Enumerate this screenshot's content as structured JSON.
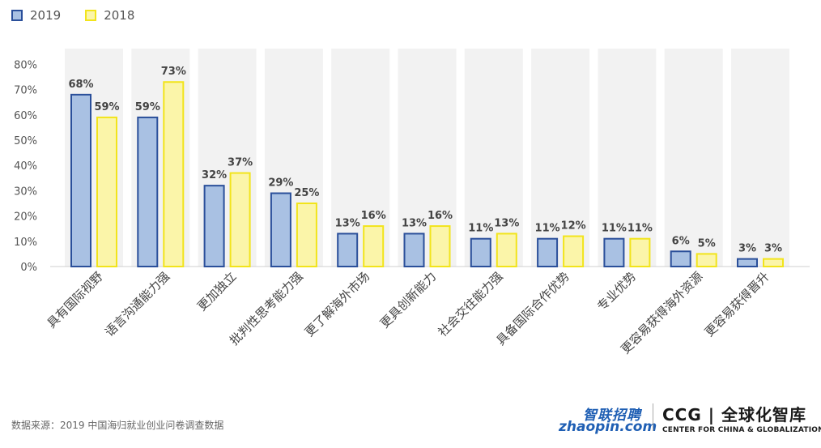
{
  "chart_data": {
    "type": "bar",
    "categories": [
      "具有国际视野",
      "语言沟通能力强",
      "更加独立",
      "批判性思考能力强",
      "更了解海外市场",
      "更具创新能力",
      "社会交往能力强",
      "具备国际合作优势",
      "专业优势",
      "更容易获得海外资源",
      "更容易获得晋升"
    ],
    "series": [
      {
        "name": "2019",
        "values": [
          68,
          59,
          32,
          29,
          13,
          13,
          11,
          11,
          11,
          6,
          3
        ],
        "labels": [
          "68%",
          "59%",
          "32%",
          "29%",
          "13%",
          "13%",
          "11%",
          "11%",
          "11%",
          "6%",
          "3%"
        ]
      },
      {
        "name": "2018",
        "values": [
          59,
          73,
          37,
          25,
          16,
          16,
          13,
          12,
          11,
          5,
          3
        ],
        "labels": [
          "59%",
          "73%",
          "37%",
          "25%",
          "16%",
          "16%",
          "13%",
          "12%",
          "11%",
          "5%",
          "3%"
        ]
      }
    ],
    "y_ticks": [
      "0%",
      "10%",
      "20%",
      "30%",
      "40%",
      "50%",
      "60%",
      "70%",
      "80%"
    ],
    "ylim": [
      0,
      85
    ],
    "colors": {
      "2019_fill": "#a9c1e3",
      "2019_stroke": "#2a4f9a",
      "2018_fill": "#fbf5a9",
      "2018_stroke": "#f2e41b",
      "panel": "#f2f2f2"
    },
    "legend_position": "top-left",
    "grid": false
  },
  "source_text": "数据来源：2019 中国海归就业创业问卷调查数据",
  "logos": {
    "zhaopin_cn": "智联招聘",
    "zhaopin_en": "zhaopin.com",
    "ccg_name": "CCG | 全球化智库",
    "ccg_sub": "CENTER FOR CHINA & GLOBALIZATION"
  }
}
